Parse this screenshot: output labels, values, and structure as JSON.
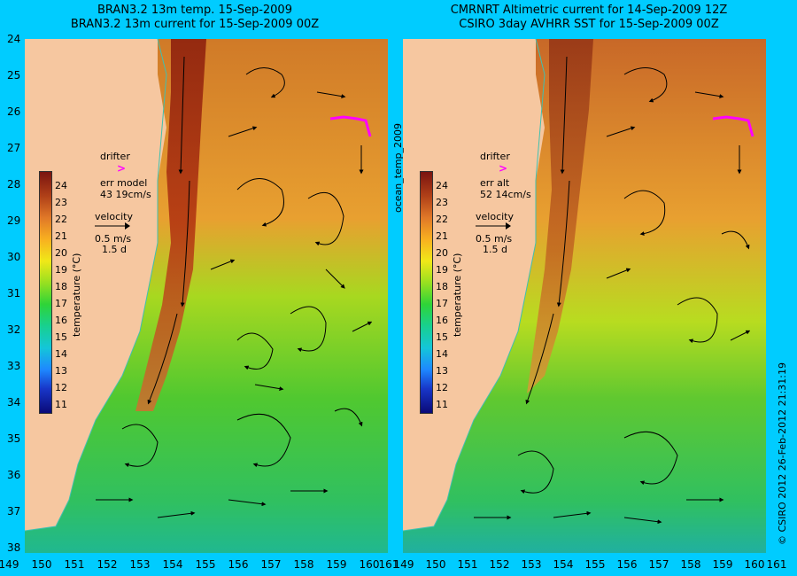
{
  "left_panel": {
    "title_line1": "BRAN3.2 13m temp. 15-Sep-2009",
    "title_line2": "BRAN3.2 13m current for 15-Sep-2009 00Z",
    "drifter_label": "drifter",
    "err_label": "err model",
    "err_value": "43 19cm/s",
    "velocity_label": "velocity",
    "velocity_value": "0.5 m/s",
    "velocity_days": "1.5 d"
  },
  "right_panel": {
    "title_line1": "CMRNRT Altimetric current for 14-Sep-2009 12Z",
    "title_line2": "CSIRO 3day AVHRR SST for 15-Sep-2009 00Z",
    "drifter_label": "drifter",
    "err_label": "err alt",
    "err_value": "52 14cm/s",
    "velocity_label": "velocity",
    "velocity_value": "0.5 m/s",
    "velocity_days": "1.5 d"
  },
  "center_label": "ocean_temp_2009",
  "colorbar": {
    "label": "temperature (°C)",
    "ticks": [
      "24",
      "23",
      "22",
      "21",
      "20",
      "19",
      "18",
      "17",
      "16",
      "15",
      "14",
      "13",
      "12",
      "11"
    ]
  },
  "lat_ticks": [
    "24",
    "25",
    "26",
    "27",
    "28",
    "29",
    "30",
    "31",
    "32",
    "33",
    "34",
    "35",
    "36",
    "37",
    "38"
  ],
  "lon_ticks": [
    "149",
    "150",
    "151",
    "152",
    "153",
    "154",
    "155",
    "156",
    "157",
    "158",
    "159",
    "160",
    "161"
  ],
  "copyright": "© CSIRO 2012   26-Feb-2012 21:31:19",
  "colors": {
    "background": "#00ccff",
    "land": "#f6c7a0",
    "drifter": "#ff00ff",
    "coastline": "#40c0b0"
  }
}
